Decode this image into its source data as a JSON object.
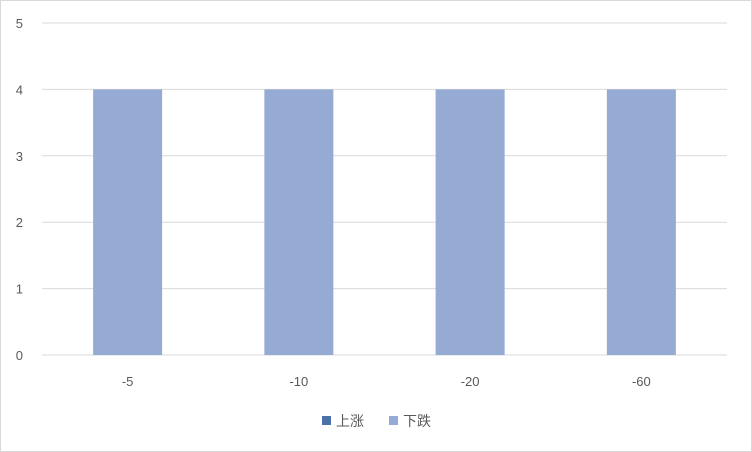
{
  "chart_data": {
    "type": "bar",
    "categories": [
      "-5",
      "-10",
      "-20",
      "-60"
    ],
    "series": [
      {
        "name": "上涨",
        "color": "#4a72a8",
        "values": [
          0,
          0,
          0,
          0
        ]
      },
      {
        "name": "下跌",
        "color": "#95abd3",
        "values": [
          4,
          4,
          4,
          4
        ]
      }
    ],
    "title": "",
    "xlabel": "",
    "ylabel": "",
    "ylim": [
      0,
      5
    ],
    "yticks": [
      "0",
      "1",
      "2",
      "3",
      "4",
      "5"
    ],
    "grid": true,
    "gridColor": "#d9d9d9",
    "legend_position": "bottom"
  }
}
